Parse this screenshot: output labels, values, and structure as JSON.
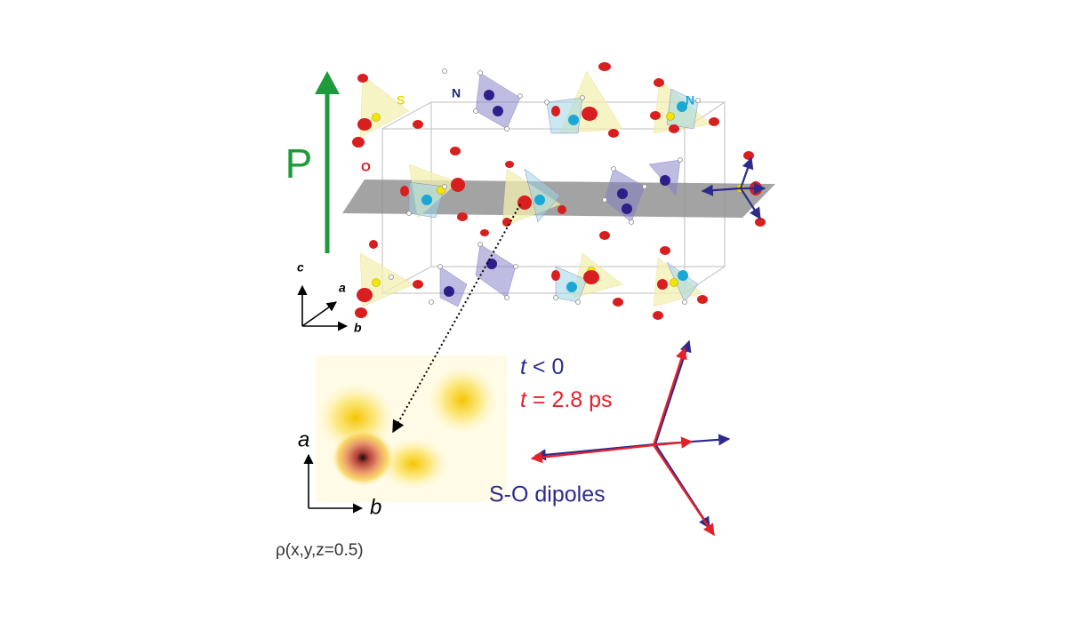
{
  "crystal": {
    "polarization": "P",
    "atom_labels": [
      "S",
      "N",
      "N",
      "O"
    ],
    "axes": [
      "c",
      "a",
      "b"
    ]
  },
  "density_map": {
    "axes": [
      "a",
      "b"
    ],
    "caption": "ρ(x,y,z=0.5)"
  },
  "legend": [
    {
      "var": "t",
      "rest": " < 0",
      "color": "#2e2a8c"
    },
    {
      "var": "t",
      "rest": " = 2.8 ps",
      "color": "#e8202a"
    }
  ],
  "dipoles_label": "S-O dipoles"
}
